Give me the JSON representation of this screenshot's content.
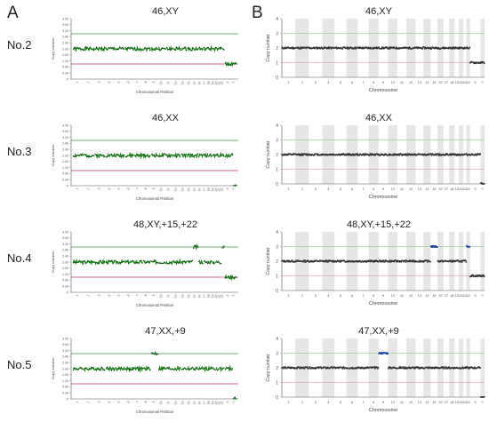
{
  "panels": {
    "left": "A",
    "right": "B"
  },
  "rows": [
    {
      "label": "No.2",
      "karyotype_a": "46,XY",
      "karyotype_b": "46,XY",
      "segments": [
        [
          1,
          22,
          2.0,
          "n"
        ],
        [
          23,
          23,
          1.0,
          "n"
        ],
        [
          24,
          24,
          1.0,
          "n"
        ]
      ]
    },
    {
      "label": "No.3",
      "karyotype_a": "46,XX",
      "karyotype_b": "46,XX",
      "segments": [
        [
          1,
          22,
          2.0,
          "n"
        ],
        [
          23,
          23,
          2.0,
          "n"
        ],
        [
          24,
          24,
          0.0,
          "n"
        ]
      ]
    },
    {
      "label": "No.4",
      "karyotype_a": "48,XY,+15,+22",
      "karyotype_b": "48,XY,+15,+22",
      "segments": [
        [
          1,
          14,
          2.0,
          "n"
        ],
        [
          15,
          15,
          3.0,
          "g"
        ],
        [
          16,
          21,
          2.0,
          "n"
        ],
        [
          22,
          22,
          3.0,
          "g"
        ],
        [
          23,
          24,
          1.0,
          "n"
        ]
      ]
    },
    {
      "label": "No.5",
      "karyotype_a": "47,XX,+9",
      "karyotype_b": "47,XX,+9",
      "segments": [
        [
          1,
          8,
          2.0,
          "n"
        ],
        [
          9,
          9,
          3.0,
          "g"
        ],
        [
          10,
          22,
          2.0,
          "n"
        ],
        [
          23,
          23,
          2.0,
          "n"
        ],
        [
          24,
          24,
          0.0,
          "n"
        ]
      ]
    }
  ],
  "left_chart": {
    "ylabel": "Copy Number",
    "xlabel": "Chromosomal Position",
    "yticks": [
      "4.00",
      "3.60",
      "3.20",
      "2.80",
      "2.40",
      "2.00",
      "1.60",
      "1.20",
      "0.80",
      "0.40",
      "0"
    ],
    "xticks": [
      "1",
      "2",
      "3",
      "4",
      "5",
      "6",
      "7",
      "8",
      "9",
      "10",
      "11",
      "12",
      "13",
      "14",
      "15",
      "16",
      "17",
      "18",
      "19",
      "20",
      "21",
      "22",
      "X",
      "Y"
    ]
  },
  "right_chart": {
    "ylabel": "Copy number",
    "xlabel": "Chromosome",
    "yticks": [
      "4",
      "3",
      "2",
      "1",
      "0"
    ],
    "xticks": [
      "1",
      "2",
      "3",
      "4",
      "5",
      "6",
      "7",
      "8",
      "9",
      "10",
      "11",
      "12",
      "13",
      "14",
      "15",
      "16",
      "17",
      "18",
      "19",
      "20",
      "21",
      "22",
      "X",
      "Y"
    ]
  },
  "colors": {
    "left_trace": "#1e8a1e",
    "left_point": "#111111",
    "left_gain": "#2e7d32",
    "right_point": "#333333",
    "right_gain": "#1f3fa0",
    "upper_line": "#3a9a3a",
    "lower_line": "#c0397a",
    "band": "#e6e6e6"
  },
  "chart_data": {
    "type": "scatter",
    "description_of_values": "copy number per chromosome",
    "x": [
      "1",
      "2",
      "3",
      "4",
      "5",
      "6",
      "7",
      "8",
      "9",
      "10",
      "11",
      "12",
      "13",
      "14",
      "15",
      "16",
      "17",
      "18",
      "19",
      "20",
      "21",
      "22",
      "X",
      "Y"
    ],
    "series": [
      {
        "name": "No.2",
        "values": [
          2,
          2,
          2,
          2,
          2,
          2,
          2,
          2,
          2,
          2,
          2,
          2,
          2,
          2,
          2,
          2,
          2,
          2,
          2,
          2,
          2,
          2,
          1,
          1
        ]
      },
      {
        "name": "No.3",
        "values": [
          2,
          2,
          2,
          2,
          2,
          2,
          2,
          2,
          2,
          2,
          2,
          2,
          2,
          2,
          2,
          2,
          2,
          2,
          2,
          2,
          2,
          2,
          2,
          0
        ]
      },
      {
        "name": "No.4",
        "values": [
          2,
          2,
          2,
          2,
          2,
          2,
          2,
          2,
          2,
          2,
          2,
          2,
          2,
          2,
          3,
          2,
          2,
          2,
          2,
          2,
          2,
          3,
          1,
          1
        ]
      },
      {
        "name": "No.5",
        "values": [
          2,
          2,
          2,
          2,
          2,
          2,
          2,
          2,
          3,
          2,
          2,
          2,
          2,
          2,
          2,
          2,
          2,
          2,
          2,
          2,
          2,
          2,
          2,
          0
        ]
      }
    ],
    "ylim_left": [
      0,
      4
    ],
    "ylim_right": [
      0,
      4
    ]
  }
}
